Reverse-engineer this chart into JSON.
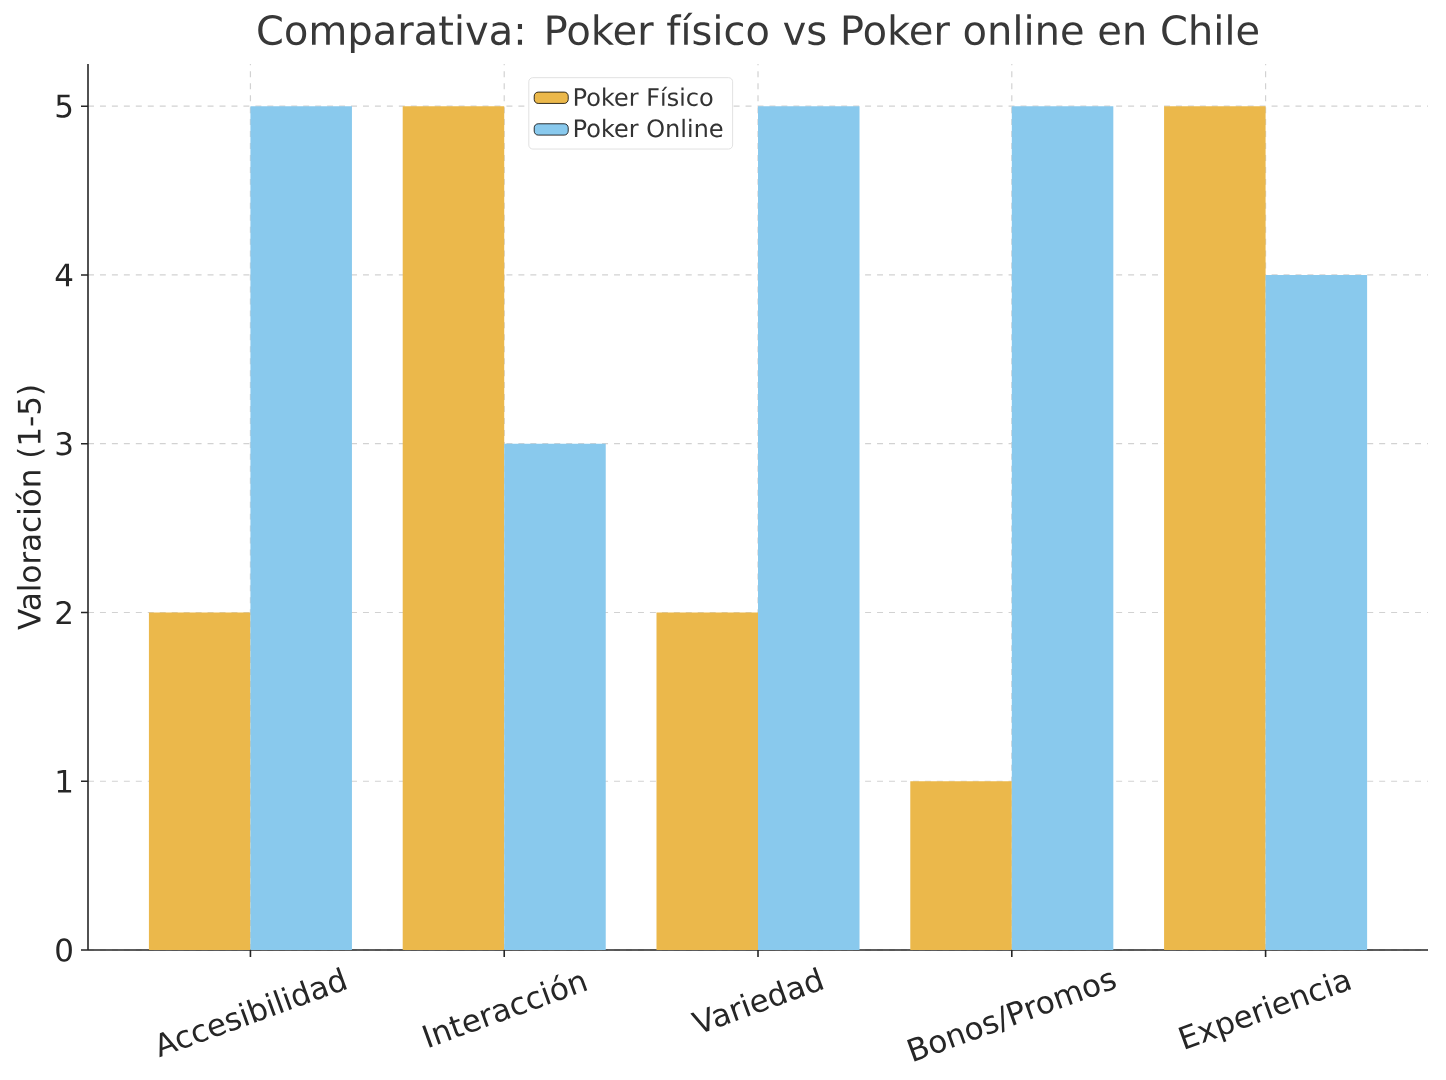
{
  "chart_data": {
    "type": "bar",
    "title": "Comparativa: Poker físico vs Poker online en Chile",
    "ylabel": "Valoración (1-5)",
    "categories": [
      "Accesibilidad",
      "Interacción",
      "Variedad",
      "Bonos/Promos",
      "Experiencia"
    ],
    "series": [
      {
        "name": "Poker Físico",
        "color": "#ebb84b",
        "values": [
          2,
          5,
          2,
          1,
          5
        ]
      },
      {
        "name": "Poker Online",
        "color": "#89c9ed",
        "values": [
          5,
          3,
          5,
          5,
          4
        ]
      }
    ],
    "ylim": [
      0,
      5.25
    ],
    "yticks": [
      0,
      1,
      2,
      3,
      4,
      5
    ],
    "grid": true,
    "legend": "top"
  }
}
